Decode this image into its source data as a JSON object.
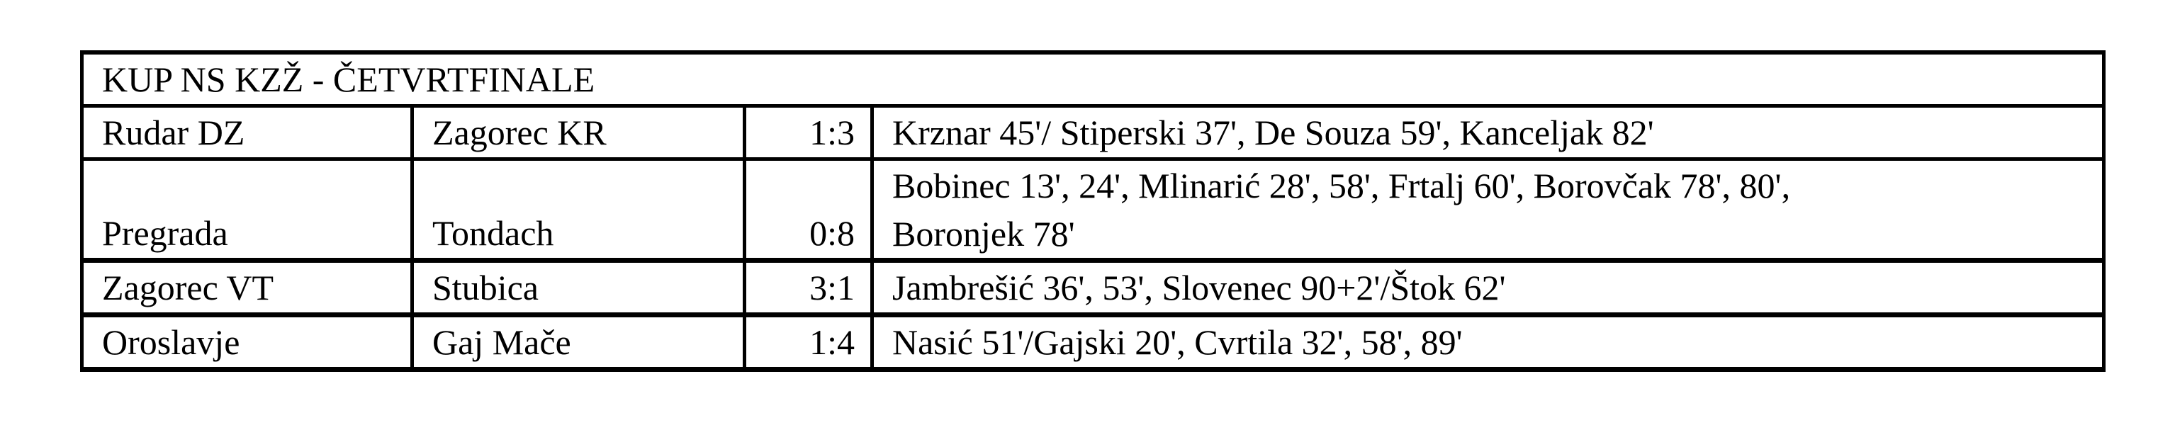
{
  "title": "KUP NS KZŽ - ČETVRTFINALE",
  "matches": [
    {
      "home": "Rudar DZ",
      "away": "Zagorec KR",
      "score": "1:3",
      "scorers": "Krznar 45'/ Stiperski 37', De Souza 59', Kanceljak 82'"
    },
    {
      "home": "Pregrada",
      "away": "Tondach",
      "score": "0:8",
      "scorers_line1": "Bobinec 13', 24', Mlinarić 28', 58', Frtalj 60', Borovčak 78', 80',",
      "scorers_line2": "Boronjek 78'"
    },
    {
      "home": "Zagorec VT",
      "away": "Stubica",
      "score": "3:1",
      "scorers": "Jambrešić 36', 53', Slovenec 90+2'/Štok 62'"
    },
    {
      "home": "Oroslavje",
      "away": "Gaj Mače",
      "score": "1:4",
      "scorers": "Nasić 51'/Gajski 20', Cvrtila 32', 58', 89'"
    }
  ]
}
